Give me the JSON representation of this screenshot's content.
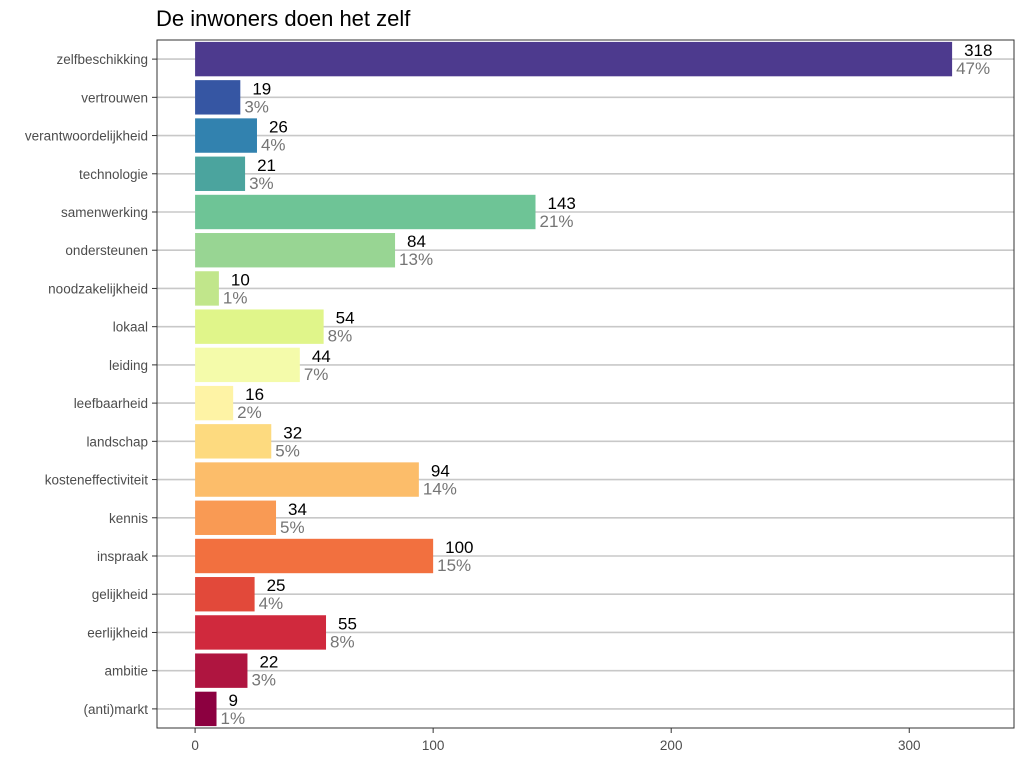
{
  "chart_data": {
    "type": "bar",
    "orientation": "horizontal",
    "title": "De inwoners doen het zelf",
    "xlabel": "",
    "ylabel": "",
    "xlim": [
      -16,
      344
    ],
    "x_ticks": [
      0,
      100,
      200,
      300
    ],
    "grid": "horizontal lines at each category",
    "legend": "none",
    "categories": [
      "zelfbeschikking",
      "vertrouwen",
      "verantwoordelijkheid",
      "technologie",
      "samenwerking",
      "ondersteunen",
      "noodzakelijkheid",
      "lokaal",
      "leiding",
      "leefbaarheid",
      "landschap",
      "kosteneffectiviteit",
      "kennis",
      "inspraak",
      "gelijkheid",
      "eerlijkheid",
      "ambitie",
      "(anti)markt"
    ],
    "values": [
      318,
      19,
      26,
      21,
      143,
      84,
      10,
      54,
      44,
      16,
      32,
      94,
      34,
      100,
      25,
      55,
      22,
      9
    ],
    "percent_labels": [
      "47%",
      "3%",
      "4%",
      "3%",
      "21%",
      "13%",
      "1%",
      "8%",
      "7%",
      "2%",
      "5%",
      "14%",
      "5%",
      "15%",
      "4%",
      "8%",
      "3%",
      "1%"
    ],
    "colors": [
      "#4D3A8E",
      "#3656A3",
      "#3282AF",
      "#4BA49E",
      "#6EC496",
      "#98D593",
      "#C1E68B",
      "#E0F58A",
      "#F4FBAA",
      "#FEF3A5",
      "#FDDA7F",
      "#FCBD6A",
      "#F99A54",
      "#F2703F",
      "#E2493A",
      "#D0293D",
      "#AF1540",
      "#8C0040"
    ]
  }
}
